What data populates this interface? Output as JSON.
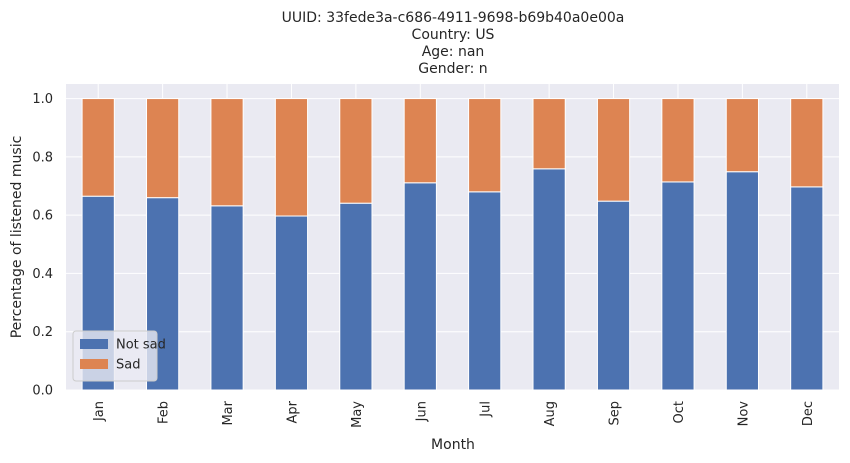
{
  "chart_data": {
    "type": "bar",
    "stacked": true,
    "title_lines": [
      "UUID: 33fede3a-c686-4911-9698-b69b40a0e00a",
      "Country: US",
      "Age: nan",
      "Gender: n"
    ],
    "xlabel": "Month",
    "ylabel": "Percentage of listened music",
    "categories": [
      "Jan",
      "Feb",
      "Mar",
      "Apr",
      "May",
      "Jun",
      "Jul",
      "Aug",
      "Sep",
      "Oct",
      "Nov",
      "Dec"
    ],
    "series": [
      {
        "name": "Not sad",
        "color": "#4c72b0",
        "values": [
          0.665,
          0.66,
          0.632,
          0.597,
          0.641,
          0.711,
          0.68,
          0.759,
          0.648,
          0.714,
          0.749,
          0.697
        ]
      },
      {
        "name": "Sad",
        "color": "#dd8452",
        "values": [
          0.335,
          0.34,
          0.368,
          0.403,
          0.359,
          0.289,
          0.32,
          0.241,
          0.352,
          0.286,
          0.251,
          0.303
        ]
      }
    ],
    "ylim": [
      0,
      1.05
    ],
    "yticks": [
      "0.0",
      "0.2",
      "0.4",
      "0.6",
      "0.8",
      "1.0"
    ],
    "grid": true,
    "legend_position": "lower-left",
    "background": "#eaeaf2",
    "grid_color": "#ffffff"
  }
}
